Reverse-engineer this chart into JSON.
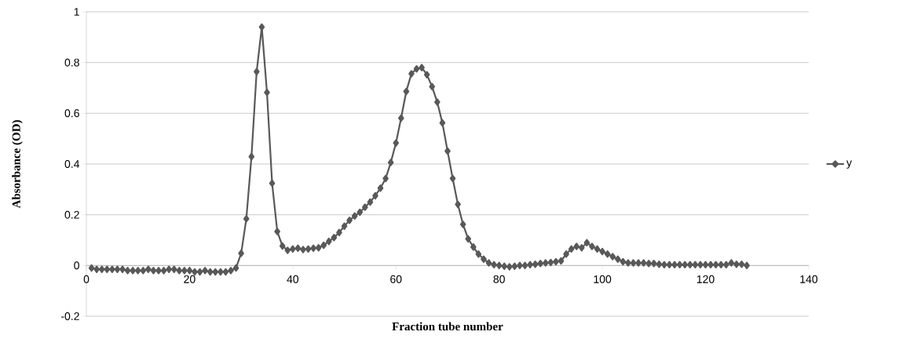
{
  "chart_data": {
    "type": "line",
    "xlabel": "Fraction tube number",
    "ylabel": "Absorbance (OD)",
    "xlim": [
      0,
      140
    ],
    "xticks": [
      0,
      20,
      40,
      60,
      80,
      100,
      120,
      140
    ],
    "ylim": [
      -0.2,
      1
    ],
    "yticks": [
      -0.2,
      0,
      0.2,
      0.4,
      0.6,
      0.8,
      1
    ],
    "grid": "y",
    "legend": "right",
    "marker": "diamond",
    "line_style": "solid",
    "series": [
      {
        "name": "y",
        "color": "#595959",
        "x": [
          1,
          2,
          3,
          4,
          5,
          6,
          7,
          8,
          9,
          10,
          11,
          12,
          13,
          14,
          15,
          16,
          17,
          18,
          19,
          20,
          21,
          22,
          23,
          24,
          25,
          26,
          27,
          28,
          29,
          30,
          31,
          32,
          33,
          34,
          35,
          36,
          37,
          38,
          39,
          40,
          41,
          42,
          43,
          44,
          45,
          46,
          47,
          48,
          49,
          50,
          51,
          52,
          53,
          54,
          55,
          56,
          57,
          58,
          59,
          60,
          61,
          62,
          63,
          64,
          65,
          66,
          67,
          68,
          69,
          70,
          71,
          72,
          73,
          74,
          75,
          76,
          77,
          78,
          79,
          80,
          81,
          82,
          83,
          84,
          85,
          86,
          87,
          88,
          89,
          90,
          91,
          92,
          93,
          94,
          95,
          96,
          97,
          98,
          99,
          100,
          101,
          102,
          103,
          104,
          105,
          106,
          107,
          108,
          109,
          110,
          111,
          112,
          113,
          114,
          115,
          116,
          117,
          118,
          119,
          120,
          121,
          122,
          123,
          124,
          125,
          126,
          127,
          128
        ],
        "values": [
          -0.01,
          -0.015,
          -0.015,
          -0.015,
          -0.015,
          -0.015,
          -0.015,
          -0.02,
          -0.02,
          -0.02,
          -0.02,
          -0.015,
          -0.02,
          -0.02,
          -0.02,
          -0.015,
          -0.015,
          -0.02,
          -0.02,
          -0.02,
          -0.025,
          -0.025,
          -0.02,
          -0.025,
          -0.025,
          -0.025,
          -0.025,
          -0.02,
          -0.01,
          0.048,
          0.184,
          0.429,
          0.764,
          0.94,
          0.682,
          0.324,
          0.134,
          0.077,
          0.06,
          0.065,
          0.068,
          0.063,
          0.065,
          0.068,
          0.07,
          0.08,
          0.095,
          0.11,
          0.13,
          0.155,
          0.178,
          0.195,
          0.21,
          0.23,
          0.25,
          0.275,
          0.305,
          0.343,
          0.406,
          0.483,
          0.581,
          0.686,
          0.756,
          0.775,
          0.78,
          0.752,
          0.705,
          0.644,
          0.562,
          0.451,
          0.343,
          0.241,
          0.162,
          0.105,
          0.073,
          0.045,
          0.025,
          0.01,
          0.003,
          0,
          -0.003,
          -0.005,
          -0.003,
          0,
          0,
          0.003,
          0.005,
          0.008,
          0.01,
          0.012,
          0.015,
          0.018,
          0.045,
          0.065,
          0.075,
          0.07,
          0.09,
          0.075,
          0.065,
          0.055,
          0.045,
          0.035,
          0.025,
          0.015,
          0.01,
          0.01,
          0.01,
          0.01,
          0.008,
          0.008,
          0.005,
          0.003,
          0.003,
          0.003,
          0.003,
          0.003,
          0.003,
          0.003,
          0.003,
          0.003,
          0.003,
          0.003,
          0.003,
          0.003,
          0.01,
          0.005,
          0.005,
          0
        ]
      }
    ]
  }
}
